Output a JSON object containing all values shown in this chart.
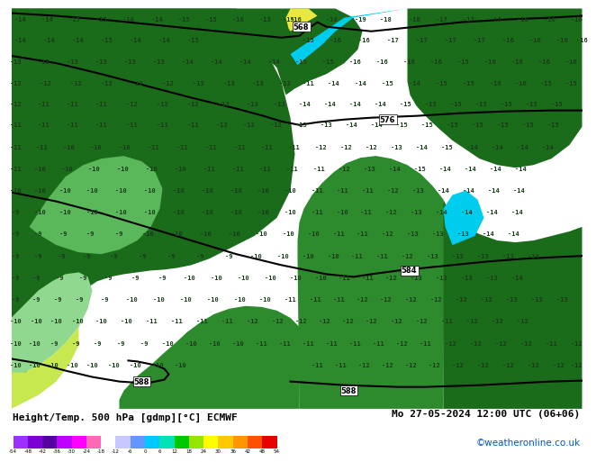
{
  "title_left": "Height/Temp. 500 hPa [gdmp][°C] ECMWF",
  "title_right": "Mo 27-05-2024 12:00 UTC (06+06)",
  "subtitle_right": "©weatheronline.co.uk",
  "colorbar_ticks": [
    -54,
    -48,
    -42,
    -36,
    -30,
    -24,
    -18,
    -12,
    -6,
    0,
    6,
    12,
    18,
    24,
    30,
    36,
    42,
    48,
    54
  ],
  "colorbar_colors": [
    "#9b30ff",
    "#7b00d4",
    "#5500a0",
    "#c000ff",
    "#ff00ff",
    "#ff69b4",
    "#ffffff",
    "#c8c8ff",
    "#6496ff",
    "#00c8ff",
    "#00e4b4",
    "#00c800",
    "#96e400",
    "#ffff00",
    "#ffc800",
    "#ff9600",
    "#ff5000",
    "#e60000"
  ],
  "cyan_ocean": "#00ccee",
  "dark_green_land": "#1a6b1a",
  "mid_green": "#2d8a2d",
  "light_green": "#5ab85a",
  "pale_green": "#90d890",
  "yellow_green": "#c8e850",
  "text_color": "#1a3a1a",
  "contour_color": "#000000",
  "watermark_color": "#0055cc",
  "bg_white": "#ffffff"
}
